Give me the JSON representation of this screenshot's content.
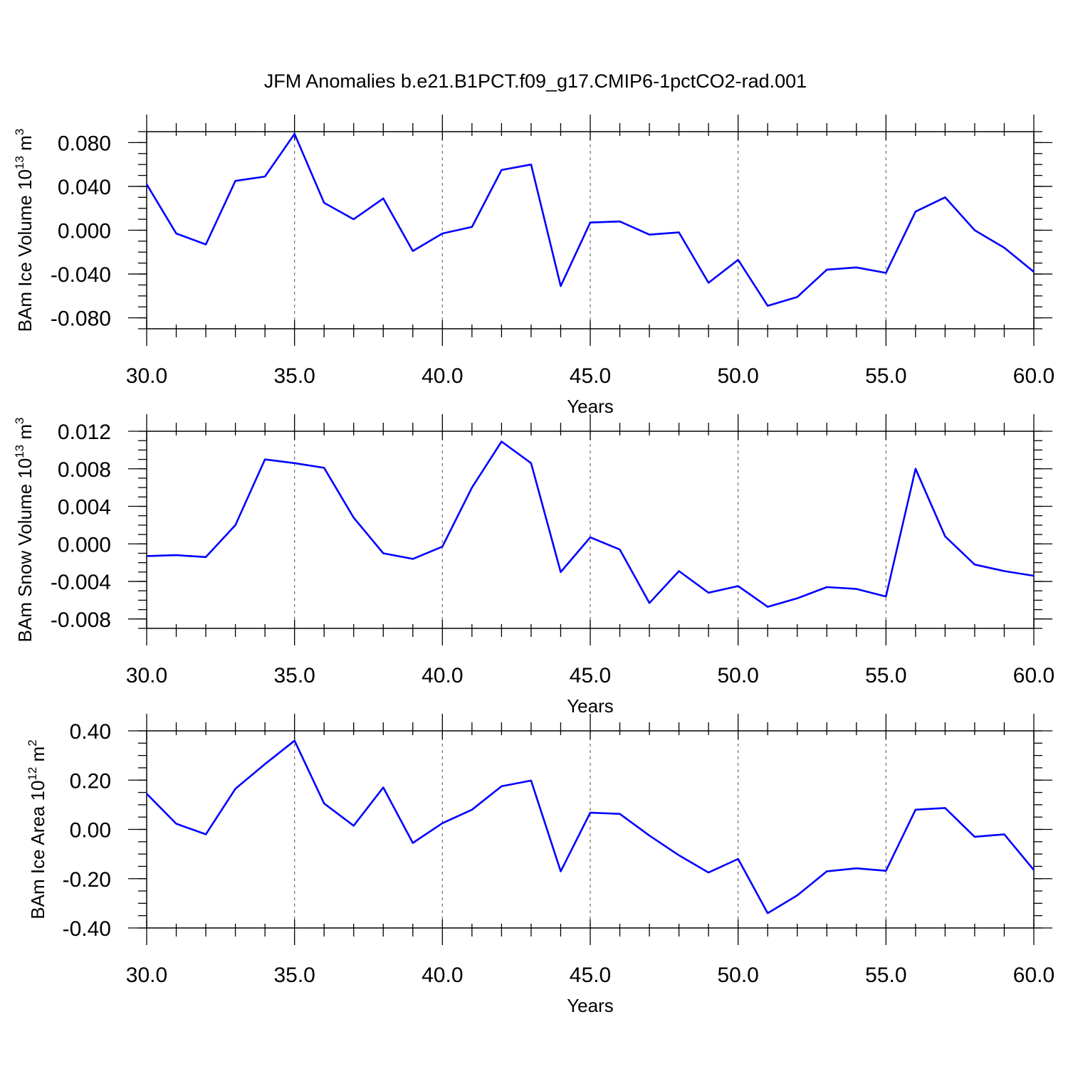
{
  "title": "JFM Anomalies b.e21.B1PCT.f09_g17.CMIP6-1pctCO2-rad.001",
  "colors": {
    "series": "#0000ff",
    "grid": "#777777",
    "frame": "#000000"
  },
  "chart_data": [
    {
      "type": "line",
      "ylabel_main": "BAm Ice Volume 10",
      "ylabel_exp": "13",
      "ylabel_unit": " m",
      "ylabel_unit_exp": "3",
      "xlabel": "Years",
      "xlim": [
        30,
        60
      ],
      "ylim": [
        -0.09,
        0.09
      ],
      "x_ticks": [
        "30.0",
        "35.0",
        "40.0",
        "45.0",
        "50.0",
        "55.0",
        "60.0"
      ],
      "y_ticks": [
        {
          "value": 0.08,
          "label": "0.080"
        },
        {
          "value": 0.04,
          "label": "0.040"
        },
        {
          "value": 0.0,
          "label": "0.000"
        },
        {
          "value": -0.04,
          "label": "-0.040"
        },
        {
          "value": -0.08,
          "label": "-0.080"
        }
      ],
      "y_minor_step": 0.01,
      "grid_x": true,
      "x": [
        30,
        31,
        32,
        33,
        34,
        35,
        36,
        37,
        38,
        39,
        40,
        41,
        42,
        43,
        44,
        45,
        46,
        47,
        48,
        49,
        50,
        51,
        52,
        53,
        54,
        55,
        56,
        57,
        58,
        59,
        60
      ],
      "y": [
        0.042,
        -0.003,
        -0.013,
        0.045,
        0.049,
        0.088,
        0.025,
        0.01,
        0.029,
        -0.019,
        -0.003,
        0.003,
        0.055,
        0.06,
        -0.051,
        0.007,
        0.008,
        -0.004,
        -0.002,
        -0.048,
        -0.027,
        -0.069,
        -0.061,
        -0.036,
        -0.034,
        -0.039,
        0.017,
        0.03,
        0.0,
        -0.016,
        -0.038
      ]
    },
    {
      "type": "line",
      "ylabel_main": "BAm Snow Volume 10",
      "ylabel_exp": "13",
      "ylabel_unit": " m",
      "ylabel_unit_exp": "3",
      "xlabel": "Years",
      "xlim": [
        30,
        60
      ],
      "ylim": [
        -0.009,
        0.012
      ],
      "x_ticks": [
        "30.0",
        "35.0",
        "40.0",
        "45.0",
        "50.0",
        "55.0",
        "60.0"
      ],
      "y_ticks": [
        {
          "value": 0.012,
          "label": "0.012"
        },
        {
          "value": 0.008,
          "label": "0.008"
        },
        {
          "value": 0.004,
          "label": "0.004"
        },
        {
          "value": 0.0,
          "label": "0.000"
        },
        {
          "value": -0.004,
          "label": "-0.004"
        },
        {
          "value": -0.008,
          "label": "-0.008"
        }
      ],
      "y_minor_step": 0.001,
      "grid_x": true,
      "x": [
        30,
        31,
        32,
        33,
        34,
        35,
        36,
        37,
        38,
        39,
        40,
        41,
        42,
        43,
        44,
        45,
        46,
        47,
        48,
        49,
        50,
        51,
        52,
        53,
        54,
        55,
        56,
        57,
        58,
        59,
        60
      ],
      "y": [
        -0.0013,
        -0.0012,
        -0.0014,
        0.002,
        0.009,
        0.0086,
        0.0081,
        0.0028,
        -0.001,
        -0.0016,
        -0.0003,
        0.006,
        0.0109,
        0.0086,
        -0.003,
        0.0007,
        -0.0006,
        -0.0063,
        -0.0029,
        -0.0052,
        -0.0045,
        -0.0067,
        -0.0058,
        -0.0046,
        -0.0048,
        -0.0056,
        0.008,
        0.0008,
        -0.0022,
        -0.0029,
        -0.0034
      ]
    },
    {
      "type": "line",
      "ylabel_main": "BAm Ice Area 10",
      "ylabel_exp": "12",
      "ylabel_unit": " m",
      "ylabel_unit_exp": "2",
      "xlabel": "Years",
      "xlim": [
        30,
        60
      ],
      "ylim": [
        -0.4,
        0.4
      ],
      "x_ticks": [
        "30.0",
        "35.0",
        "40.0",
        "45.0",
        "50.0",
        "55.0",
        "60.0"
      ],
      "y_ticks": [
        {
          "value": 0.4,
          "label": "0.40"
        },
        {
          "value": 0.2,
          "label": "0.20"
        },
        {
          "value": 0.0,
          "label": "0.00"
        },
        {
          "value": -0.2,
          "label": "-0.20"
        },
        {
          "value": -0.4,
          "label": "-0.40"
        }
      ],
      "y_minor_step": 0.05,
      "grid_x": true,
      "x": [
        30,
        31,
        32,
        33,
        34,
        35,
        36,
        37,
        38,
        39,
        40,
        41,
        42,
        43,
        44,
        45,
        46,
        47,
        48,
        49,
        50,
        51,
        52,
        53,
        54,
        55,
        56,
        57,
        58,
        59,
        60
      ],
      "y": [
        0.145,
        0.023,
        -0.02,
        0.165,
        0.265,
        0.36,
        0.105,
        0.015,
        0.17,
        -0.055,
        0.025,
        0.08,
        0.175,
        0.198,
        -0.17,
        0.068,
        0.063,
        -0.025,
        -0.105,
        -0.175,
        -0.12,
        -0.34,
        -0.268,
        -0.17,
        -0.158,
        -0.168,
        0.08,
        0.087,
        -0.03,
        -0.02,
        -0.165
      ]
    }
  ]
}
